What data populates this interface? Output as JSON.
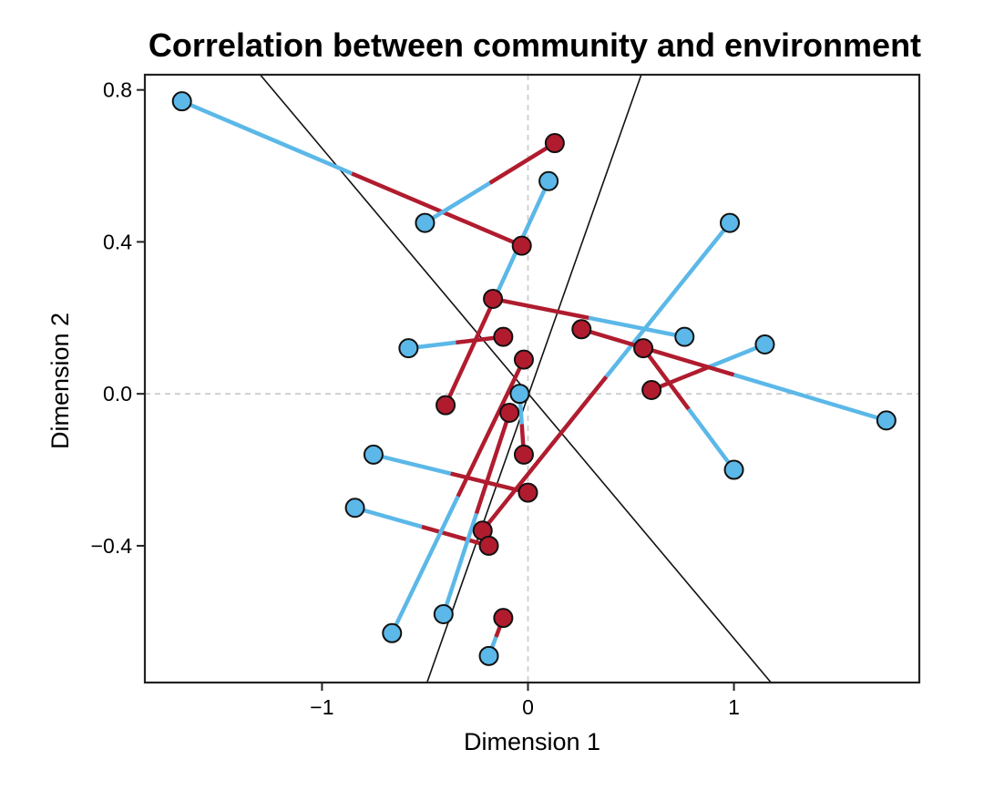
{
  "chart_data": {
    "type": "scatter",
    "title": "Correlation between community and environment",
    "xlabel": "Dimension 1",
    "ylabel": "Dimension 2",
    "xlim": [
      -1.86,
      1.9
    ],
    "ylim": [
      -0.76,
      0.84
    ],
    "xticks": [
      {
        "value": -1,
        "label": "−1"
      },
      {
        "value": 0,
        "label": "0"
      },
      {
        "value": 1,
        "label": "1"
      }
    ],
    "yticks": [
      {
        "value": 0.8,
        "label": "0.8"
      },
      {
        "value": 0.4,
        "label": "0.4"
      },
      {
        "value": 0.0,
        "label": "0.0"
      },
      {
        "value": -0.4,
        "label": "−0.4"
      }
    ],
    "reference_lines": {
      "x": 0,
      "y": 0,
      "style": "dashed"
    },
    "colors": {
      "community": "#5bb8e8",
      "environment": "#b01c2e",
      "axis_line": "#222222",
      "reference": "#c8c8c8"
    },
    "diagonal_lines": [
      {
        "x1": -1.3,
        "y1": 0.84,
        "x2": 1.18,
        "y2": -0.76
      },
      {
        "x1": -0.49,
        "y1": -0.76,
        "x2": 0.55,
        "y2": 0.84
      }
    ],
    "series": [
      {
        "name": "community",
        "color": "#5bb8e8"
      },
      {
        "name": "environment",
        "color": "#b01c2e"
      }
    ],
    "pairs": [
      {
        "community": [
          -1.68,
          0.77
        ],
        "environment": [
          -0.03,
          0.39
        ]
      },
      {
        "community": [
          -0.5,
          0.45
        ],
        "environment": [
          0.13,
          0.66
        ]
      },
      {
        "community": [
          0.1,
          0.56
        ],
        "environment": [
          -0.4,
          -0.03
        ]
      },
      {
        "community": [
          0.98,
          0.45
        ],
        "environment": [
          -0.22,
          -0.36
        ]
      },
      {
        "community": [
          0.76,
          0.15
        ],
        "environment": [
          -0.17,
          0.25
        ]
      },
      {
        "community": [
          -0.58,
          0.12
        ],
        "environment": [
          -0.12,
          0.15
        ]
      },
      {
        "community": [
          1.15,
          0.13
        ],
        "environment": [
          0.6,
          0.01
        ]
      },
      {
        "community": [
          1.74,
          -0.07
        ],
        "environment": [
          0.26,
          0.17
        ]
      },
      {
        "community": [
          1.0,
          -0.2
        ],
        "environment": [
          0.56,
          0.12
        ]
      },
      {
        "community": [
          -0.04,
          0.0
        ],
        "environment": [
          -0.02,
          -0.16
        ]
      },
      {
        "community": [
          -0.75,
          -0.16
        ],
        "environment": [
          0.0,
          -0.26
        ]
      },
      {
        "community": [
          -0.84,
          -0.3
        ],
        "environment": [
          -0.19,
          -0.4
        ]
      },
      {
        "community": [
          -0.66,
          -0.63
        ],
        "environment": [
          -0.02,
          0.09
        ]
      },
      {
        "community": [
          -0.41,
          -0.58
        ],
        "environment": [
          -0.09,
          -0.05
        ]
      },
      {
        "community": [
          -0.19,
          -0.69
        ],
        "environment": [
          -0.12,
          -0.59
        ]
      }
    ]
  }
}
